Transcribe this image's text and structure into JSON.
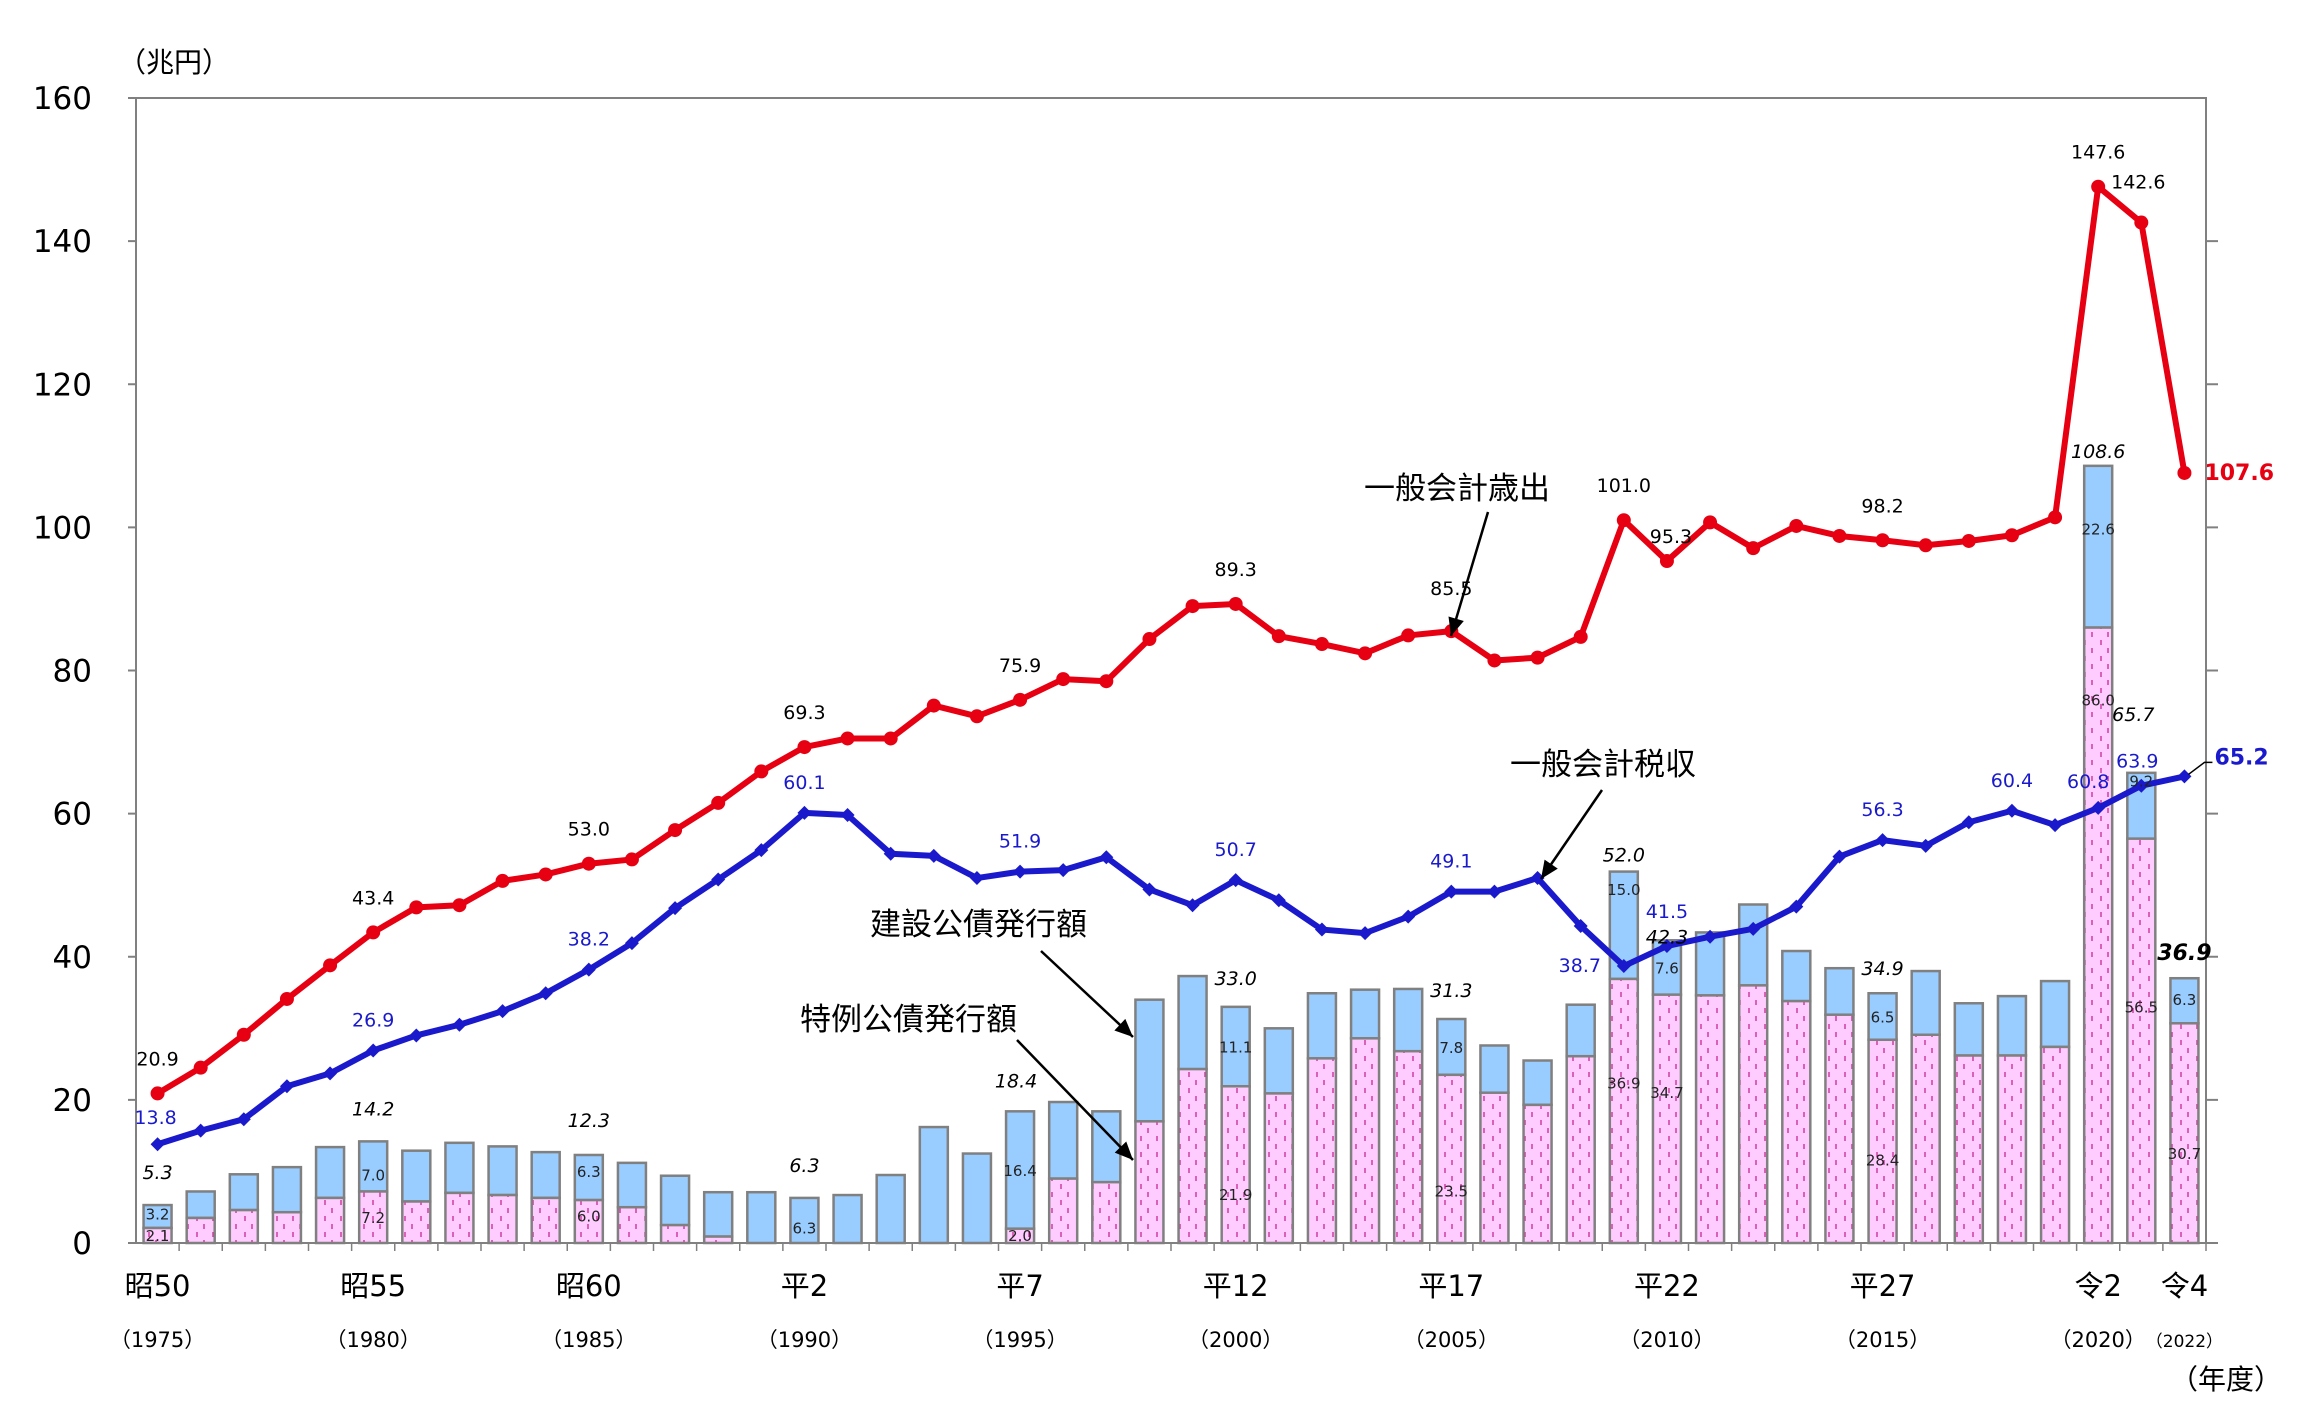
{
  "chart_data": {
    "type": "bar",
    "y_unit": "（兆円）",
    "x_unit": "（年度）",
    "ylim": [
      0,
      160
    ],
    "yticks": [
      "0",
      "20",
      "40",
      "60",
      "80",
      "100",
      "120",
      "140",
      "160"
    ],
    "years": [
      1975,
      1976,
      1977,
      1978,
      1979,
      1980,
      1981,
      1982,
      1983,
      1984,
      1985,
      1986,
      1987,
      1988,
      1989,
      1990,
      1991,
      1992,
      1993,
      1994,
      1995,
      1996,
      1997,
      1998,
      1999,
      2000,
      2001,
      2002,
      2003,
      2004,
      2005,
      2006,
      2007,
      2008,
      2009,
      2010,
      2011,
      2012,
      2013,
      2014,
      2015,
      2016,
      2017,
      2018,
      2019,
      2020,
      2021,
      2022
    ],
    "x_labels": [
      {
        "year": 1975,
        "era": "昭50",
        "ad": "（1975）"
      },
      {
        "year": 1980,
        "era": "昭55",
        "ad": "（1980）"
      },
      {
        "year": 1985,
        "era": "昭60",
        "ad": "（1985）"
      },
      {
        "year": 1990,
        "era": "平2",
        "ad": "（1990）"
      },
      {
        "year": 1995,
        "era": "平7",
        "ad": "（1995）"
      },
      {
        "year": 2000,
        "era": "平12",
        "ad": "（2000）"
      },
      {
        "year": 2005,
        "era": "平17",
        "ad": "（2005）"
      },
      {
        "year": 2010,
        "era": "平22",
        "ad": "（2010）"
      },
      {
        "year": 2015,
        "era": "平27",
        "ad": "（2015）"
      },
      {
        "year": 2020,
        "era": "令2",
        "ad": "（2020）"
      },
      {
        "year": 2022,
        "era": "令4",
        "ad": "（2022）"
      }
    ],
    "series": [
      {
        "name": "特例公債発行額",
        "kind": "bar-stack-bottom",
        "color": "#ffccff",
        "values": [
          2.1,
          3.5,
          4.6,
          4.3,
          6.3,
          7.2,
          5.8,
          7.0,
          6.7,
          6.3,
          6.0,
          5.0,
          2.5,
          0.9,
          0.0,
          0.0,
          0.0,
          0.0,
          0.0,
          0.0,
          2.0,
          9.0,
          8.5,
          17.0,
          24.3,
          21.9,
          20.9,
          25.8,
          28.6,
          26.8,
          23.5,
          21.0,
          19.3,
          26.1,
          36.9,
          34.7,
          34.6,
          36.0,
          33.8,
          31.9,
          28.4,
          29.1,
          26.2,
          26.2,
          27.4,
          86.0,
          56.5,
          30.7
        ]
      },
      {
        "name": "建設公債発行額",
        "kind": "bar-stack-top",
        "color": "#99ccff",
        "values": [
          3.2,
          3.7,
          5.0,
          6.3,
          7.1,
          7.0,
          7.1,
          7.0,
          6.8,
          6.4,
          6.3,
          6.2,
          6.9,
          6.2,
          7.1,
          6.3,
          6.7,
          9.5,
          16.2,
          12.5,
          16.4,
          10.7,
          9.9,
          17.0,
          13.0,
          11.1,
          9.1,
          9.1,
          6.8,
          8.7,
          7.8,
          6.6,
          6.2,
          7.2,
          15.0,
          7.6,
          8.8,
          11.3,
          7.0,
          6.5,
          6.5,
          8.9,
          7.3,
          8.3,
          9.2,
          22.6,
          9.2,
          6.3
        ]
      },
      {
        "name": "一般会計歳出",
        "kind": "line",
        "color": "#e60012",
        "values": [
          20.9,
          24.5,
          29.1,
          34.1,
          38.8,
          43.4,
          46.9,
          47.2,
          50.6,
          51.5,
          53.0,
          53.6,
          57.7,
          61.5,
          65.9,
          69.3,
          70.5,
          70.5,
          75.1,
          73.6,
          75.9,
          78.8,
          78.5,
          84.4,
          89.0,
          89.3,
          84.8,
          83.7,
          82.4,
          84.9,
          85.5,
          81.4,
          81.8,
          84.7,
          101.0,
          95.3,
          100.7,
          97.1,
          100.2,
          98.8,
          98.2,
          97.5,
          98.1,
          98.9,
          101.4,
          147.6,
          142.6,
          107.6
        ]
      },
      {
        "name": "一般会計税収",
        "kind": "line",
        "color": "#1a1acc",
        "values": [
          13.8,
          15.7,
          17.3,
          21.9,
          23.7,
          26.9,
          29.0,
          30.5,
          32.4,
          34.9,
          38.2,
          41.9,
          46.8,
          50.8,
          54.9,
          60.1,
          59.8,
          54.4,
          54.1,
          51.0,
          51.9,
          52.1,
          53.9,
          49.4,
          47.2,
          50.7,
          47.9,
          43.8,
          43.3,
          45.6,
          49.1,
          49.1,
          51.0,
          44.3,
          38.7,
          41.5,
          42.8,
          43.9,
          47.0,
          54.0,
          56.3,
          55.5,
          58.8,
          60.4,
          58.4,
          60.8,
          63.9,
          65.2
        ]
      }
    ],
    "bar_total_labels": [
      {
        "year": 1975,
        "text": "5.3"
      },
      {
        "year": 1980,
        "text": "14.2"
      },
      {
        "year": 1985,
        "text": "12.3"
      },
      {
        "year": 1990,
        "text": "6.3"
      },
      {
        "year": 1995,
        "text": "18.4"
      },
      {
        "year": 2000,
        "text": "33.0"
      },
      {
        "year": 2005,
        "text": "31.3"
      },
      {
        "year": 2009,
        "text": "52.0"
      },
      {
        "year": 2010,
        "text": "42.3"
      },
      {
        "year": 2015,
        "text": "34.9"
      },
      {
        "year": 2020,
        "text": "108.6"
      },
      {
        "year": 2021,
        "text": "65.7"
      },
      {
        "year": 2022,
        "text": "36.9"
      }
    ],
    "bar_segment_labels": [
      {
        "year": 1975,
        "part": "top",
        "text": "3.2"
      },
      {
        "year": 1975,
        "part": "bottom",
        "text": "2.1"
      },
      {
        "year": 1980,
        "part": "top",
        "text": "7.0"
      },
      {
        "year": 1980,
        "part": "bottom",
        "text": "7.2"
      },
      {
        "year": 1985,
        "part": "top",
        "text": "6.3"
      },
      {
        "year": 1985,
        "part": "bottom",
        "text": "6.0"
      },
      {
        "year": 1990,
        "part": "top",
        "text": "6.3"
      },
      {
        "year": 1995,
        "part": "top",
        "text": "16.4"
      },
      {
        "year": 1995,
        "part": "bottom",
        "text": "2.0"
      },
      {
        "year": 2000,
        "part": "top",
        "text": "11.1"
      },
      {
        "year": 2000,
        "part": "bottom",
        "text": "21.9"
      },
      {
        "year": 2005,
        "part": "top",
        "text": "7.8"
      },
      {
        "year": 2005,
        "part": "bottom",
        "text": "23.5"
      },
      {
        "year": 2009,
        "part": "top",
        "text": "15.0"
      },
      {
        "year": 2009,
        "part": "bottom",
        "text": "36.9"
      },
      {
        "year": 2010,
        "part": "top",
        "text": "7.6"
      },
      {
        "year": 2010,
        "part": "bottom",
        "text": "34.7"
      },
      {
        "year": 2015,
        "part": "top",
        "text": "6.5"
      },
      {
        "year": 2015,
        "part": "bottom",
        "text": "28.4"
      },
      {
        "year": 2020,
        "part": "top",
        "text": "22.6"
      },
      {
        "year": 2020,
        "part": "bottom",
        "text": "86.0"
      },
      {
        "year": 2021,
        "part": "top",
        "text": "9.2"
      },
      {
        "year": 2021,
        "part": "bottom",
        "text": "56.5"
      },
      {
        "year": 2022,
        "part": "top",
        "text": "6.3"
      },
      {
        "year": 2022,
        "part": "bottom",
        "text": "30.7"
      }
    ],
    "expenditure_labels": [
      {
        "year": 1975,
        "text": "20.9"
      },
      {
        "year": 1980,
        "text": "43.4"
      },
      {
        "year": 1985,
        "text": "53.0"
      },
      {
        "year": 1990,
        "text": "69.3"
      },
      {
        "year": 1995,
        "text": "75.9"
      },
      {
        "year": 2000,
        "text": "89.3"
      },
      {
        "year": 2005,
        "text": "85.5"
      },
      {
        "year": 2009,
        "text": "101.0"
      },
      {
        "year": 2010,
        "text": "95.3"
      },
      {
        "year": 2015,
        "text": "98.2"
      },
      {
        "year": 2020,
        "text": "147.6"
      },
      {
        "year": 2021,
        "text": "142.6"
      },
      {
        "year": 2022,
        "text": "107.6"
      }
    ],
    "tax_labels": [
      {
        "year": 1975,
        "text": "13.8"
      },
      {
        "year": 1980,
        "text": "26.9"
      },
      {
        "year": 1985,
        "text": "38.2"
      },
      {
        "year": 1990,
        "text": "60.1"
      },
      {
        "year": 1995,
        "text": "51.9"
      },
      {
        "year": 2000,
        "text": "50.7"
      },
      {
        "year": 2005,
        "text": "49.1"
      },
      {
        "year": 2009,
        "text": "38.7"
      },
      {
        "year": 2010,
        "text": "41.5"
      },
      {
        "year": 2015,
        "text": "56.3"
      },
      {
        "year": 2018,
        "text": "60.4"
      },
      {
        "year": 2020,
        "text": "60.8"
      },
      {
        "year": 2021,
        "text": "63.9"
      },
      {
        "year": 2022,
        "text": "65.2"
      }
    ],
    "annotations": {
      "expenditure": "一般会計歳出",
      "tax": "一般会計税収",
      "construction": "建設公債発行額",
      "special": "特例公債発行額"
    },
    "colors": {
      "expenditure": "#e60012",
      "tax": "#1a1acc",
      "construction": "#99ccff",
      "special": "#ffccff",
      "bar_border": "#808080",
      "special_dash": "#cc3399",
      "axis": "#808080"
    }
  }
}
